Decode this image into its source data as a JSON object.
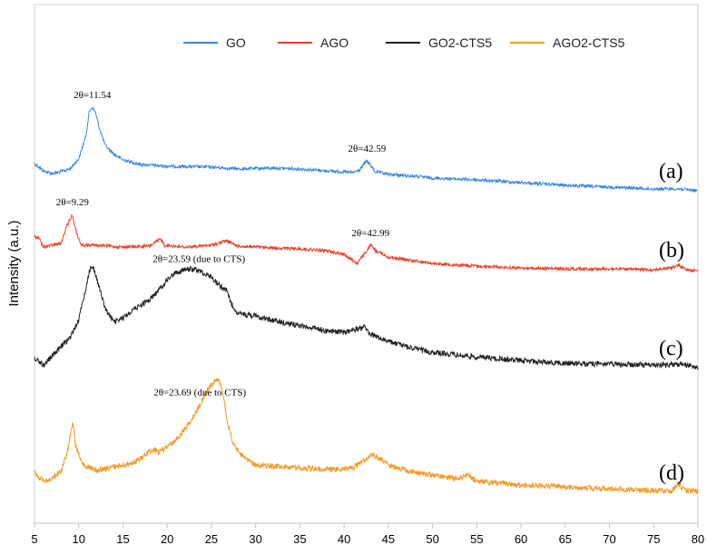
{
  "chart_data": {
    "type": "line",
    "title": "",
    "xlabel": "",
    "ylabel": "Intensity (a.u.)",
    "xlim": [
      5,
      80
    ],
    "xticks": [
      5,
      10,
      15,
      20,
      25,
      30,
      35,
      40,
      45,
      50,
      55,
      60,
      65,
      70,
      75,
      80
    ],
    "yticks": false,
    "legend_position": "top",
    "legend": [
      "GO",
      "AGO",
      "GO2-CTS5",
      "AGO2-CTS5"
    ],
    "series": [
      {
        "name": "GO",
        "color": "#3b86dd",
        "panel_label": "(a)",
        "points": [
          [
            5,
            180
          ],
          [
            6,
            188
          ],
          [
            7,
            191
          ],
          [
            8,
            189
          ],
          [
            9,
            186
          ],
          [
            10,
            175
          ],
          [
            10.8,
            150
          ],
          [
            11.2,
            123
          ],
          [
            11.54,
            118
          ],
          [
            11.9,
            124
          ],
          [
            12.3,
            140
          ],
          [
            13,
            160
          ],
          [
            14,
            170
          ],
          [
            15,
            176
          ],
          [
            17,
            181
          ],
          [
            20,
            183
          ],
          [
            25,
            184
          ],
          [
            28,
            186
          ],
          [
            32,
            185
          ],
          [
            35,
            186
          ],
          [
            38,
            188
          ],
          [
            41,
            190
          ],
          [
            41.8,
            187
          ],
          [
            42.3,
            180
          ],
          [
            42.59,
            177
          ],
          [
            42.9,
            181
          ],
          [
            43.5,
            189
          ],
          [
            45,
            192
          ],
          [
            48,
            194
          ],
          [
            50,
            196
          ],
          [
            55,
            198
          ],
          [
            60,
            201
          ],
          [
            65,
            204
          ],
          [
            70,
            206
          ],
          [
            75,
            208
          ],
          [
            78,
            208
          ],
          [
            80,
            210
          ]
        ],
        "annotations": [
          {
            "x": 11.54,
            "text": "2θ=11.54"
          },
          {
            "x": 42.59,
            "text": "2θ=42.59"
          }
        ]
      },
      {
        "name": "AGO",
        "color": "#e8402a",
        "panel_label": "(b)",
        "points": [
          [
            5,
            260
          ],
          [
            5.5,
            262
          ],
          [
            6,
            272
          ],
          [
            7,
            270
          ],
          [
            8,
            268
          ],
          [
            8.7,
            248
          ],
          [
            9.29,
            236
          ],
          [
            9.7,
            255
          ],
          [
            10.3,
            270
          ],
          [
            12,
            270
          ],
          [
            15,
            272
          ],
          [
            18,
            271
          ],
          [
            19.3,
            263
          ],
          [
            19.7,
            270
          ],
          [
            22,
            272
          ],
          [
            25,
            270
          ],
          [
            26.7,
            265
          ],
          [
            28,
            271
          ],
          [
            30,
            272
          ],
          [
            35,
            274
          ],
          [
            38,
            276
          ],
          [
            40,
            280
          ],
          [
            41.5,
            290
          ],
          [
            42.4,
            278
          ],
          [
            42.99,
            270
          ],
          [
            43.6,
            276
          ],
          [
            45,
            283
          ],
          [
            50,
            290
          ],
          [
            55,
            293
          ],
          [
            60,
            295
          ],
          [
            65,
            296
          ],
          [
            70,
            296
          ],
          [
            75,
            297
          ],
          [
            77,
            295
          ],
          [
            77.8,
            292
          ],
          [
            78.6,
            296
          ],
          [
            80,
            299
          ]
        ],
        "annotations": [
          {
            "x": 9.29,
            "text": "2θ=9.29"
          },
          {
            "x": 42.99,
            "text": "2θ=42.99"
          }
        ]
      },
      {
        "name": "GO2-CTS5",
        "color": "#222222",
        "panel_label": "(c)",
        "points": [
          [
            5,
            394
          ],
          [
            6,
            402
          ],
          [
            7,
            392
          ],
          [
            8,
            382
          ],
          [
            9,
            372
          ],
          [
            10,
            352
          ],
          [
            10.8,
            318
          ],
          [
            11.2,
            298
          ],
          [
            11.6,
            293
          ],
          [
            12.2,
            312
          ],
          [
            13,
            340
          ],
          [
            14,
            355
          ],
          [
            15,
            350
          ],
          [
            16,
            342
          ],
          [
            17,
            336
          ],
          [
            18,
            330
          ],
          [
            19,
            320
          ],
          [
            20,
            308
          ],
          [
            21,
            300
          ],
          [
            22,
            297
          ],
          [
            23,
            296
          ],
          [
            24,
            300
          ],
          [
            25,
            305
          ],
          [
            26,
            315
          ],
          [
            26.7,
            320
          ],
          [
            27.3,
            335
          ],
          [
            28,
            345
          ],
          [
            30,
            348
          ],
          [
            33,
            355
          ],
          [
            36,
            360
          ],
          [
            38,
            364
          ],
          [
            40,
            366
          ],
          [
            41.5,
            362
          ],
          [
            42.3,
            360
          ],
          [
            43,
            368
          ],
          [
            45,
            376
          ],
          [
            48,
            384
          ],
          [
            50,
            388
          ],
          [
            55,
            393
          ],
          [
            60,
            397
          ],
          [
            65,
            400
          ],
          [
            70,
            401
          ],
          [
            75,
            402
          ],
          [
            78,
            401
          ],
          [
            80,
            404
          ]
        ],
        "annotations": [
          {
            "x": 23.59,
            "text": "2θ=23.59 (due to CTS)"
          }
        ]
      },
      {
        "name": "AGO2-CTS5",
        "color": "#f29a24",
        "panel_label": "(d)",
        "points": [
          [
            5,
            520
          ],
          [
            6,
            530
          ],
          [
            7,
            527
          ],
          [
            8,
            518
          ],
          [
            8.8,
            495
          ],
          [
            9.3,
            465
          ],
          [
            9.7,
            492
          ],
          [
            10.5,
            512
          ],
          [
            12,
            518
          ],
          [
            14,
            514
          ],
          [
            16,
            510
          ],
          [
            17,
            505
          ],
          [
            18,
            497
          ],
          [
            18.5,
            494
          ],
          [
            19,
            498
          ],
          [
            20,
            492
          ],
          [
            21,
            485
          ],
          [
            22,
            472
          ],
          [
            23,
            458
          ],
          [
            24,
            440
          ],
          [
            24.5,
            430
          ],
          [
            25,
            423
          ],
          [
            25.4,
            420
          ],
          [
            25.8,
            418
          ],
          [
            26.3,
            432
          ],
          [
            26.8,
            465
          ],
          [
            27.5,
            490
          ],
          [
            28.5,
            502
          ],
          [
            30,
            512
          ],
          [
            33,
            514
          ],
          [
            36,
            516
          ],
          [
            39,
            517
          ],
          [
            41,
            515
          ],
          [
            42,
            508
          ],
          [
            43.2,
            500
          ],
          [
            44,
            505
          ],
          [
            45,
            512
          ],
          [
            47,
            518
          ],
          [
            50,
            523
          ],
          [
            53,
            527
          ],
          [
            54,
            523
          ],
          [
            55,
            530
          ],
          [
            60,
            534
          ],
          [
            65,
            536
          ],
          [
            70,
            538
          ],
          [
            75,
            540
          ],
          [
            77,
            541
          ],
          [
            77.8,
            532
          ],
          [
            78.5,
            540
          ],
          [
            80,
            541
          ]
        ],
        "annotations": [
          {
            "x": 23.69,
            "text": "2θ=23.69 (due to CTS)"
          }
        ]
      }
    ]
  }
}
